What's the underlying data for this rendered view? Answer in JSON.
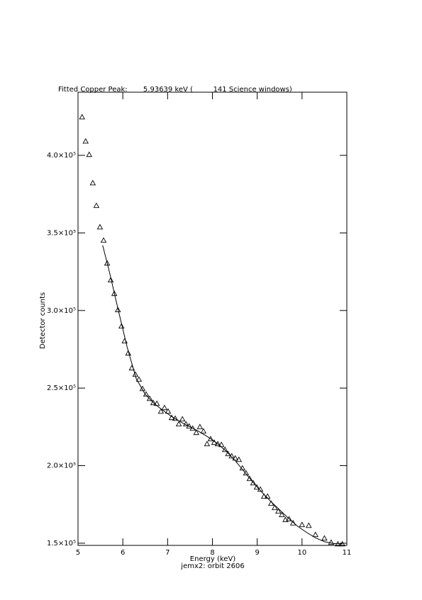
{
  "chart_data": {
    "type": "scatter",
    "title": "Fitted Copper Peak:       5.93639 keV (         141 Science windows)",
    "x_label": "Energy (keV)",
    "subtitle": "jemx2: orbit 2606",
    "y_label": "Detector counts",
    "xlim": [
      5,
      11
    ],
    "xticks": [
      5,
      6,
      7,
      8,
      9,
      10,
      11
    ],
    "ylim": [
      148600,
      440700
    ],
    "yticks": [
      {
        "value": 150000,
        "label": "1.5×10⁵"
      },
      {
        "value": 200000,
        "label": "2.0×10⁵"
      },
      {
        "value": 250000,
        "label": "2.5×10⁵"
      },
      {
        "value": 300000,
        "label": "3.0×10⁵"
      },
      {
        "value": 350000,
        "label": "3.5×10⁵"
      },
      {
        "value": 400000,
        "label": "4.0×10⁵"
      }
    ],
    "series": [
      {
        "mode": "markers",
        "marker": "triangle",
        "color": "#000000",
        "x": [
          5.09,
          5.17,
          5.25,
          5.33,
          5.41,
          5.49,
          5.57,
          5.65,
          5.73,
          5.81,
          5.89,
          5.97,
          6.04,
          6.12,
          6.2,
          6.28,
          6.36,
          6.44,
          6.52,
          6.6,
          6.68,
          6.76,
          6.85,
          6.93,
          7.01,
          7.09,
          7.17,
          7.25,
          7.33,
          7.41,
          7.48,
          7.56,
          7.64,
          7.72,
          7.8,
          7.88,
          7.96,
          8.04,
          8.12,
          8.2,
          8.28,
          8.35,
          8.43,
          8.51,
          8.59,
          8.67,
          8.75,
          8.83,
          8.91,
          8.99,
          9.07,
          9.15,
          9.23,
          9.31,
          9.39,
          9.47,
          9.55,
          9.63,
          9.71,
          9.8,
          10.0,
          10.15,
          10.3,
          10.5,
          10.65,
          10.8,
          10.9
        ],
        "values": [
          424700,
          409100,
          400500,
          382200,
          367600,
          353800,
          345200,
          330500,
          319600,
          310900,
          300400,
          289900,
          280300,
          272500,
          262900,
          258800,
          255600,
          249600,
          246000,
          243200,
          240500,
          240000,
          235000,
          237300,
          235000,
          230900,
          230400,
          226800,
          230000,
          226800,
          225400,
          224000,
          221300,
          225000,
          222200,
          214000,
          217200,
          214900,
          214000,
          213500,
          210300,
          207600,
          206200,
          204800,
          203900,
          198400,
          195200,
          191600,
          188800,
          186100,
          184700,
          180200,
          180200,
          175600,
          172900,
          170600,
          168300,
          165100,
          165600,
          163000,
          161900,
          161400,
          155500,
          153200,
          150500,
          149500,
          149500
        ]
      },
      {
        "mode": "line",
        "color": "#000000",
        "x": [
          5.55,
          5.7,
          5.9,
          6.1,
          6.3,
          6.5,
          6.7,
          6.9,
          7.1,
          7.3,
          7.5,
          7.7,
          7.9,
          8.1,
          8.3,
          8.5,
          8.7,
          8.9,
          9.1,
          9.3,
          9.5,
          9.7,
          9.9,
          10.1,
          10.3,
          10.5,
          10.7,
          10.9
        ],
        "values": [
          342000,
          325000,
          300000,
          276000,
          256000,
          246000,
          240000,
          235500,
          231500,
          228000,
          225000,
          222000,
          218500,
          214500,
          209500,
          203500,
          196500,
          189500,
          183000,
          177000,
          171500,
          166000,
          161000,
          157000,
          153500,
          151000,
          149800,
          149500
        ]
      }
    ]
  }
}
